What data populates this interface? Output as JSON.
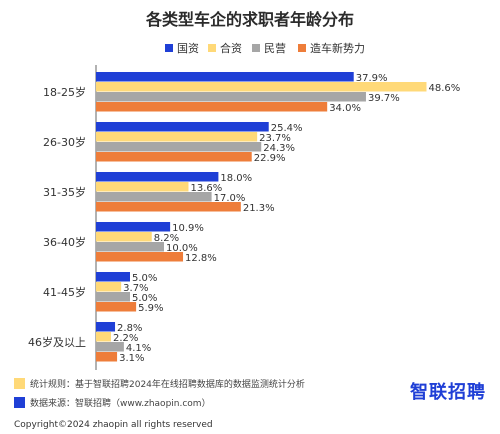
{
  "chart_data": {
    "type": "bar",
    "orientation": "horizontal",
    "title": "各类型车企的求职者年龄分布",
    "categories": [
      "18-25岁",
      "26-30岁",
      "31-35岁",
      "36-40岁",
      "41-45岁",
      "46岁及以上"
    ],
    "series": [
      {
        "name": "国资",
        "color": "#1f3fd6",
        "values": [
          37.9,
          25.4,
          18.0,
          10.9,
          5.0,
          2.8
        ],
        "labels": [
          "37.9%",
          "25.4%",
          "18.0%",
          "10.9%",
          "5.0%",
          "2.8%"
        ]
      },
      {
        "name": "合资",
        "color": "#ffd978",
        "values": [
          48.6,
          23.7,
          13.6,
          8.2,
          3.7,
          2.2
        ],
        "labels": [
          "48.6%",
          "23.7%",
          "13.6%",
          "8.2%",
          "3.7%",
          "2.2%"
        ]
      },
      {
        "name": "民营",
        "color": "#a6a6a6",
        "values": [
          39.7,
          24.3,
          17.0,
          10.0,
          5.0,
          4.1
        ],
        "labels": [
          "39.7%",
          "24.3%",
          "17.0%",
          "10.0%",
          "5.0%",
          "4.1%"
        ]
      },
      {
        "name": "造车新势力",
        "color": "#ee7d3a",
        "values": [
          34.0,
          22.9,
          21.3,
          12.8,
          5.9,
          3.1
        ],
        "labels": [
          "34.0%",
          "22.9%",
          "21.3%",
          "12.8%",
          "5.9%",
          "3.1%"
        ]
      }
    ],
    "grid": false,
    "legend_position": "top-right"
  },
  "footer": {
    "note1": "统计规则：基于智联招聘2024年在线招聘数据库的数据监测统计分析",
    "note1_color": "#ffd978",
    "note2": "数据来源：智联招聘（www.zhaopin.com）",
    "note2_color": "#1f3fd6",
    "brand": "智联招聘",
    "copyright": "Copyright©2024 zhaopin all rights reserved"
  }
}
